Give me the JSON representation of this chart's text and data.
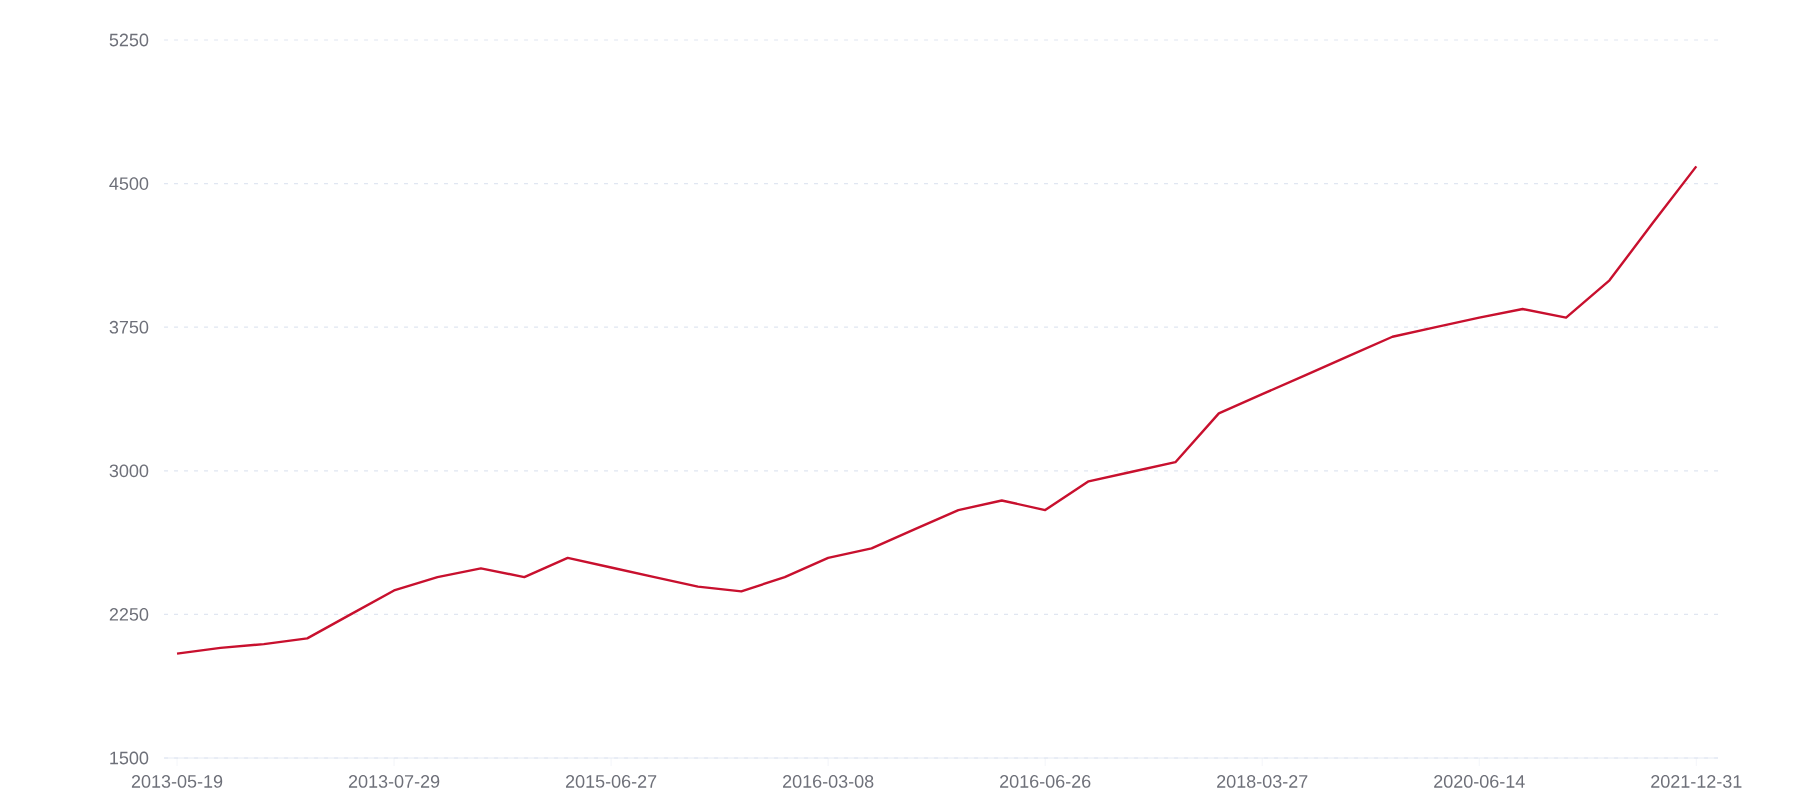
{
  "chart_data": {
    "type": "line",
    "categories": [
      "2013-05-19",
      null,
      null,
      null,
      null,
      "2013-07-29",
      null,
      null,
      null,
      null,
      "2015-06-27",
      null,
      null,
      null,
      null,
      "2016-03-08",
      null,
      null,
      null,
      null,
      "2016-06-26",
      null,
      null,
      null,
      null,
      "2018-03-27",
      null,
      null,
      null,
      null,
      "2020-06-14",
      null,
      null,
      null,
      null,
      "2021-12-31"
    ],
    "series": [
      {
        "color": "#c8102e",
        "values": [
          2045,
          2075,
          2095,
          2125,
          2250,
          2375,
          2445,
          2490,
          2445,
          2545,
          2495,
          2445,
          2395,
          2370,
          2445,
          2545,
          2595,
          2695,
          2795,
          2845,
          2795,
          2945,
          2995,
          3045,
          3300,
          3400,
          3500,
          3600,
          3700,
          3750,
          3800,
          3845,
          3800,
          3995,
          4295,
          4590
        ]
      }
    ],
    "ylim": [
      1500,
      5250
    ],
    "yticks": [
      1500,
      2250,
      3000,
      3750,
      4500,
      5250
    ],
    "grid": "y",
    "marker": "none",
    "line_style": "solid"
  }
}
